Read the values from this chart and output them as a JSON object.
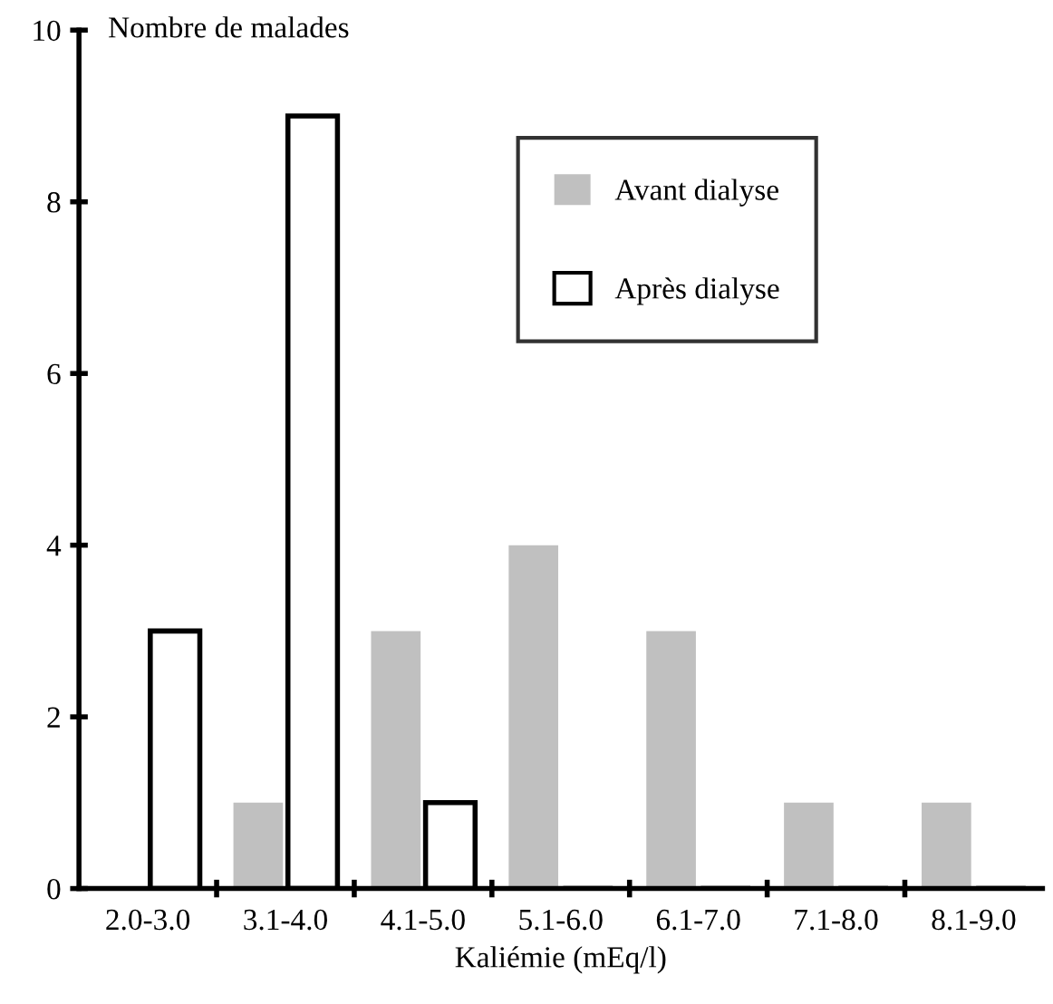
{
  "chart_data": {
    "type": "bar",
    "xlabel": "Kaliémie (mEq/l)",
    "ylabel": "Nombre de malades",
    "categories": [
      "2.0-3.0",
      "3.1-4.0",
      "4.1-5.0",
      "5.1-6.0",
      "6.1-7.0",
      "7.1-8.0",
      "8.1-9.0"
    ],
    "series": [
      {
        "name": "Avant dialyse",
        "color": "#c0c0c0",
        "values": [
          0,
          1,
          3,
          4,
          3,
          1,
          1
        ]
      },
      {
        "name": "Après dialyse",
        "color": "#ffffff",
        "values": [
          3,
          9,
          1,
          0,
          0,
          0,
          0
        ]
      }
    ],
    "ylim": [
      0,
      10
    ],
    "yticks": [
      0,
      2,
      4,
      6,
      8,
      10
    ],
    "grid": false,
    "legend": "top right"
  }
}
